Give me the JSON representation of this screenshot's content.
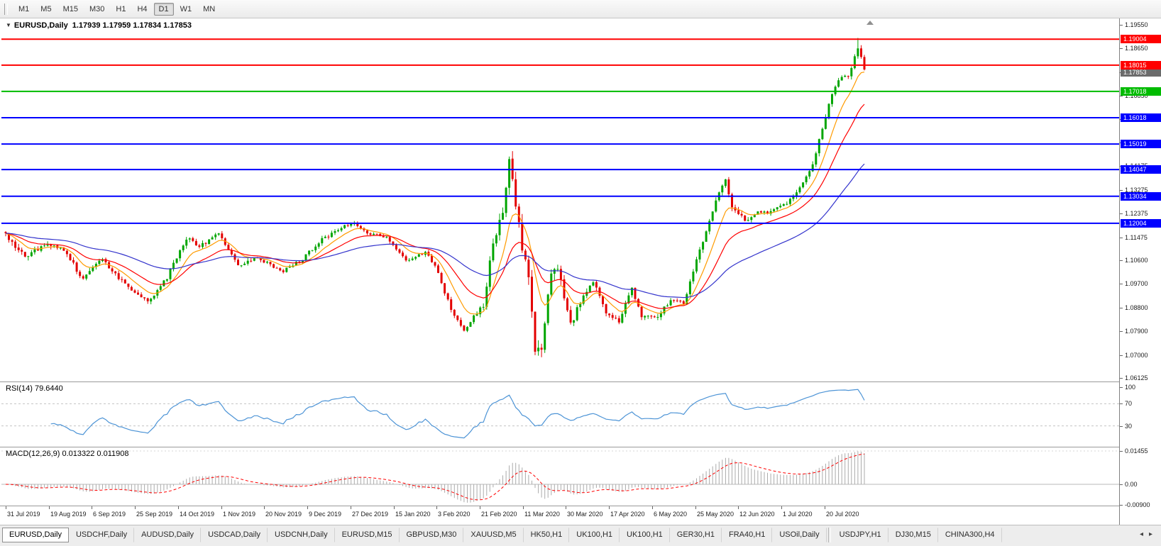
{
  "toolbar": {
    "timeframes": [
      "M1",
      "M5",
      "M15",
      "M30",
      "H1",
      "H4",
      "D1",
      "W1",
      "MN"
    ],
    "active_timeframe": "D1"
  },
  "chart": {
    "title": "EURUSD,Daily",
    "ohlc": "1.17939 1.17959 1.17834 1.17853",
    "one_click_glyph": "▼"
  },
  "rsi_header": "RSI(14) 79.6440",
  "macd_header": "MACD(12,26,9) 0.013322 0.011908",
  "chart_data": {
    "type": "candlestick",
    "symbol": "EURUSD",
    "period": "Daily",
    "open": "1.17939",
    "high": "1.17959",
    "low": "1.17834",
    "close": "1.17853",
    "bars": 267,
    "y_range": {
      "top": 1.1955,
      "bottom": 1.06125
    },
    "y_axis_labels": [
      "1.19550",
      "1.18650",
      "1.17750",
      "1.16850",
      "1.15975",
      "1.15075",
      "1.14175",
      "1.13275",
      "1.12375",
      "1.11475",
      "1.10600",
      "1.09700",
      "1.08800",
      "1.07900",
      "1.07000",
      "1.06125"
    ],
    "x_labels": [
      "31 Jul 2019",
      "19 Aug 2019",
      "6 Sep 2019",
      "25 Sep 2019",
      "14 Oct 2019",
      "1 Nov 2019",
      "20 Nov 2019",
      "9 Dec 2019",
      "27 Dec 2019",
      "15 Jan 2020",
      "3 Feb 2020",
      "21 Feb 2020",
      "11 Mar 2020",
      "30 Mar 2020",
      "17 Apr 2020",
      "6 May 2020",
      "25 May 2020",
      "12 Jun 2020",
      "1 Jul 2020",
      "20 Jul 2020"
    ],
    "horizontal_lines": [
      {
        "price": 1.19004,
        "label": "1.19004",
        "color": "#FF0000"
      },
      {
        "price": 1.18015,
        "label": "1.18015",
        "color": "#FF0000"
      },
      {
        "price": 1.17018,
        "label": "1.17018",
        "color": "#00BB00"
      },
      {
        "price": 1.16018,
        "label": "1.16018",
        "color": "#0000FF"
      },
      {
        "price": 1.15019,
        "label": "1.15019",
        "color": "#0000FF"
      },
      {
        "price": 1.14047,
        "label": "1.14047",
        "color": "#0000FF"
      },
      {
        "price": 1.13034,
        "label": "1.13034",
        "color": "#0000FF"
      },
      {
        "price": 1.12004,
        "label": "1.12004",
        "color": "#0000FF"
      }
    ],
    "bid": {
      "price": 1.17853,
      "label": "1.17853",
      "color": "#6b6b6b"
    },
    "candle_colors": {
      "up": "#00A500",
      "down": "#E30000"
    },
    "moving_averages": [
      {
        "period": 9,
        "color": "#FF9B00"
      },
      {
        "period": 21,
        "color": "#FF0000"
      },
      {
        "period": 55,
        "color": "#3333CC"
      }
    ],
    "price_path_anchors": [
      [
        0,
        1.1155,
        0.0018
      ],
      [
        6,
        1.1075,
        0.0018
      ],
      [
        12,
        1.112,
        0.0016
      ],
      [
        18,
        1.1095,
        0.0015
      ],
      [
        24,
        1.099,
        0.0014
      ],
      [
        30,
        1.1068,
        0.0015
      ],
      [
        34,
        1.1005,
        0.0013
      ],
      [
        40,
        1.0935,
        0.0012
      ],
      [
        44,
        1.09,
        0.0012
      ],
      [
        50,
        1.0995,
        0.0013
      ],
      [
        56,
        1.1145,
        0.0013
      ],
      [
        60,
        1.111,
        0.0012
      ],
      [
        66,
        1.116,
        0.0012
      ],
      [
        72,
        1.1035,
        0.0012
      ],
      [
        78,
        1.107,
        0.0011
      ],
      [
        86,
        1.1018,
        0.001
      ],
      [
        92,
        1.1065,
        0.001
      ],
      [
        98,
        1.114,
        0.0011
      ],
      [
        106,
        1.1195,
        0.0011
      ],
      [
        108,
        1.1205,
        0.0011
      ],
      [
        112,
        1.1158,
        0.0011
      ],
      [
        118,
        1.115,
        0.001
      ],
      [
        124,
        1.1058,
        0.001
      ],
      [
        130,
        1.1092,
        0.001
      ],
      [
        133,
        1.104,
        0.001
      ],
      [
        138,
        1.0872,
        0.0011
      ],
      [
        142,
        1.0795,
        0.0012
      ],
      [
        145,
        1.0848,
        0.0013
      ],
      [
        148,
        1.0885,
        0.0016
      ],
      [
        151,
        1.113,
        0.0026
      ],
      [
        154,
        1.1245,
        0.0028
      ],
      [
        156,
        1.1435,
        0.0034
      ],
      [
        158,
        1.1268,
        0.0034
      ],
      [
        160,
        1.111,
        0.0036
      ],
      [
        162,
        1.099,
        0.0036
      ],
      [
        164,
        1.07,
        0.0036
      ],
      [
        166,
        1.073,
        0.0034
      ],
      [
        169,
        1.1025,
        0.003
      ],
      [
        171,
        1.104,
        0.0026
      ],
      [
        175,
        1.0815,
        0.002
      ],
      [
        179,
        1.0928,
        0.0018
      ],
      [
        182,
        1.0975,
        0.0016
      ],
      [
        186,
        1.0862,
        0.0015
      ],
      [
        190,
        1.0828,
        0.0014
      ],
      [
        194,
        1.095,
        0.0015
      ],
      [
        197,
        1.0842,
        0.0014
      ],
      [
        202,
        1.0848,
        0.0013
      ],
      [
        206,
        1.0912,
        0.0013
      ],
      [
        210,
        1.0898,
        0.0012
      ],
      [
        212,
        1.0978,
        0.0013
      ],
      [
        216,
        1.1132,
        0.0015
      ],
      [
        220,
        1.1288,
        0.0016
      ],
      [
        223,
        1.1368,
        0.0018
      ],
      [
        225,
        1.1258,
        0.0017
      ],
      [
        229,
        1.1212,
        0.0013
      ],
      [
        233,
        1.1248,
        0.0012
      ],
      [
        236,
        1.124,
        0.0011
      ],
      [
        238,
        1.1252,
        0.0011
      ],
      [
        242,
        1.1276,
        0.0011
      ],
      [
        246,
        1.1338,
        0.0012
      ],
      [
        250,
        1.1422,
        0.0013
      ],
      [
        252,
        1.1522,
        0.0014
      ],
      [
        255,
        1.1652,
        0.0015
      ],
      [
        258,
        1.1748,
        0.0015
      ],
      [
        261,
        1.1762,
        0.0014
      ],
      [
        264,
        1.1868,
        0.0016
      ],
      [
        266,
        1.1786,
        0.0013
      ]
    ],
    "spike": {
      "index": 264,
      "high": 1.1905
    },
    "rsi": {
      "period": 14,
      "value": "79.6440",
      "color": "#4D94D6",
      "levels": [
        {
          "v": 100,
          "label": "100"
        },
        {
          "v": 70,
          "label": "70"
        },
        {
          "v": 30,
          "label": "30"
        }
      ],
      "dashed_levels": [
        70,
        30
      ]
    },
    "macd": {
      "fast": 12,
      "slow": 26,
      "signal": 9,
      "macd_value": "0.013322",
      "signal_value": "0.011908",
      "axis": [
        {
          "v": 0.01455,
          "label": "0.01455"
        },
        {
          "v": 0,
          "label": "0.00"
        },
        {
          "v": -0.009,
          "label": "-0.00900"
        }
      ],
      "hist_color": "#ABABAB",
      "signal_color": "#FF0000"
    }
  },
  "tabs": {
    "items": [
      "EURUSD,Daily",
      "USDCHF,Daily",
      "AUDUSD,Daily",
      "USDCAD,Daily",
      "USDCNH,Daily",
      "EURUSD,M15",
      "GBPUSD,M30",
      "XAUUSD,M5",
      "HK50,H1",
      "UK100,H1",
      "UK100,H1",
      "GER30,H1",
      "FRA40,H1",
      "USOil,Daily",
      "USDJPY,H1",
      "DJ30,M15",
      "CHINA300,H4"
    ],
    "active_index": 0,
    "separator_after_index": 13,
    "scroll_left_glyph": "◂",
    "scroll_right_glyph": "▸"
  }
}
